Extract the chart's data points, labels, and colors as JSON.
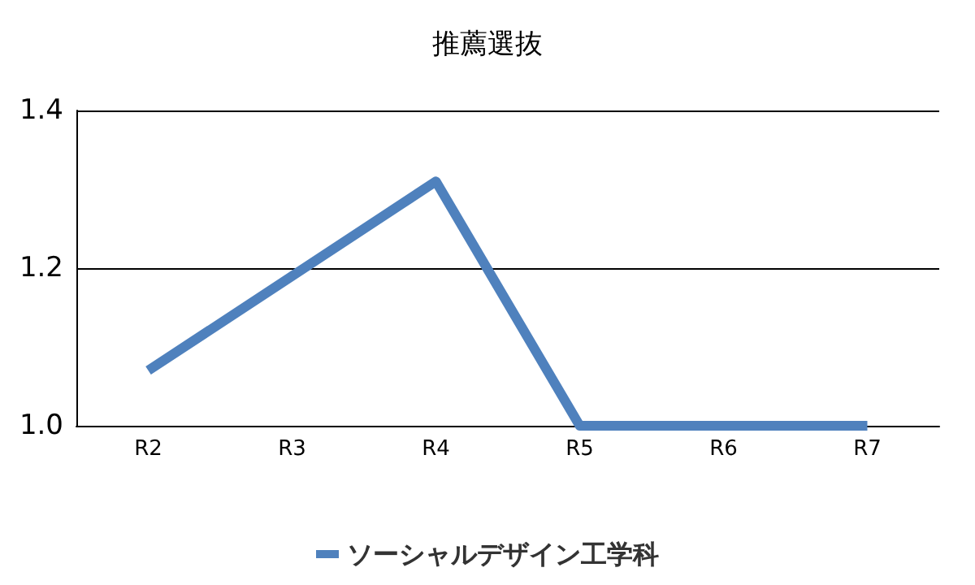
{
  "chart_data": {
    "type": "line",
    "title": "推薦選抜",
    "categories": [
      "R2",
      "R3",
      "R4",
      "R5",
      "R6",
      "R7"
    ],
    "series": [
      {
        "name": "ソーシャルデザイン工学科",
        "color": "#4f81bd",
        "values": [
          1.07,
          1.19,
          1.31,
          1.0,
          1.0,
          1.0
        ]
      }
    ],
    "ylim": [
      1.0,
      1.4
    ],
    "yticks": [
      {
        "value": 1.0,
        "label": "1.0"
      },
      {
        "value": 1.2,
        "label": "1.2"
      },
      {
        "value": 1.4,
        "label": "1.4"
      }
    ],
    "grid": "y",
    "legend": "bottom",
    "marker": "none",
    "line_style": "solid"
  }
}
